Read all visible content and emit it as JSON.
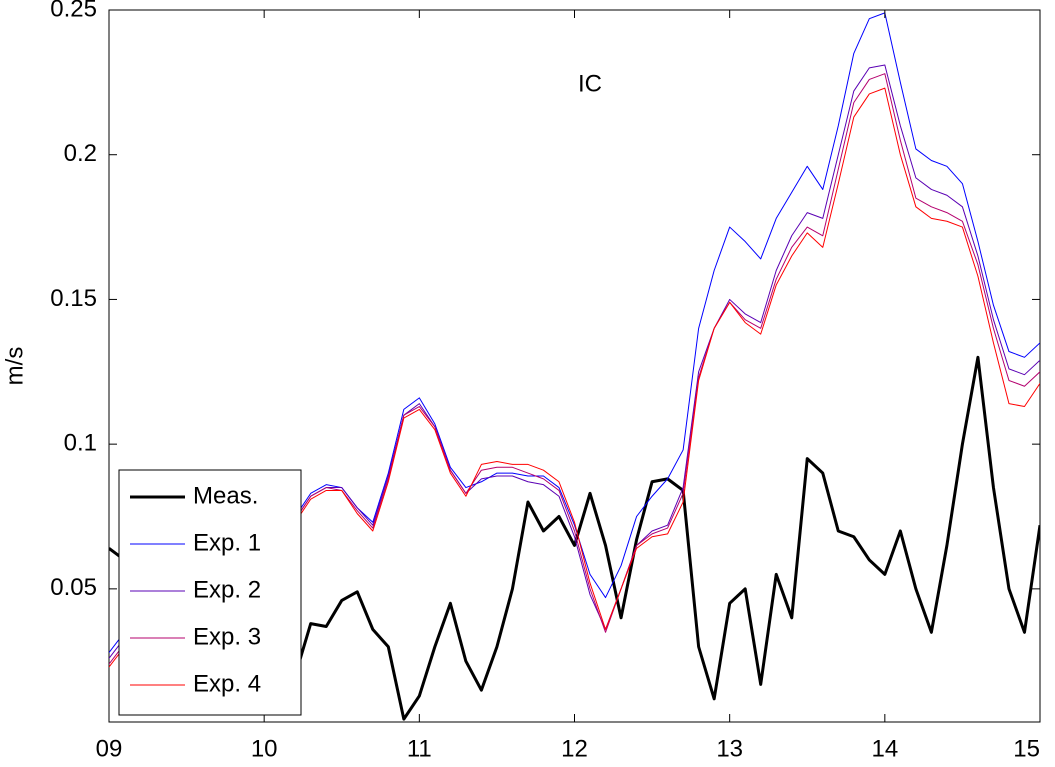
{
  "chart_data": {
    "type": "line",
    "title": "IC",
    "y_label": "m/s",
    "x": [
      9,
      9.1,
      9.2,
      9.3,
      9.4,
      9.5,
      9.6,
      9.7,
      9.8,
      9.9,
      10,
      10.1,
      10.2,
      10.3,
      10.4,
      10.5,
      10.6,
      10.7,
      10.8,
      10.9,
      11,
      11.1,
      11.2,
      11.3,
      11.4,
      11.5,
      11.6,
      11.7,
      11.8,
      11.9,
      12,
      12.1,
      12.2,
      12.3,
      12.4,
      12.5,
      12.6,
      12.7,
      12.8,
      12.9,
      13,
      13.1,
      13.2,
      13.3,
      13.4,
      13.5,
      13.6,
      13.7,
      13.8,
      13.9,
      14,
      14.1,
      14.2,
      14.3,
      14.4,
      14.5,
      14.6,
      14.7,
      14.8,
      14.9,
      15
    ],
    "series": [
      {
        "name": "Meas.",
        "color": "#000000",
        "values": [
          0.064,
          0.06,
          0.055,
          0.05,
          0.045,
          0.04,
          0.035,
          0.03,
          0.025,
          0.02,
          0.02,
          0.025,
          0.02,
          0.038,
          0.037,
          0.046,
          0.049,
          0.036,
          0.03,
          0.005,
          0.013,
          0.03,
          0.045,
          0.025,
          0.015,
          0.03,
          0.05,
          0.08,
          0.07,
          0.075,
          0.065,
          0.083,
          0.065,
          0.04,
          0.067,
          0.087,
          0.088,
          0.084,
          0.03,
          0.012,
          0.045,
          0.05,
          0.017,
          0.055,
          0.04,
          0.095,
          0.09,
          0.07,
          0.068,
          0.06,
          0.055,
          0.07,
          0.05,
          0.035,
          0.065,
          0.1,
          0.13,
          0.085,
          0.05,
          0.035,
          0.072
        ]
      },
      {
        "name": "Exp. 1",
        "color": "#0000ff",
        "values": [
          0.028,
          0.035,
          0.045,
          0.055,
          0.06,
          0.063,
          0.065,
          0.066,
          0.068,
          0.07,
          0.072,
          0.074,
          0.075,
          0.083,
          0.086,
          0.085,
          0.078,
          0.073,
          0.09,
          0.112,
          0.116,
          0.107,
          0.092,
          0.085,
          0.087,
          0.09,
          0.09,
          0.089,
          0.089,
          0.085,
          0.072,
          0.055,
          0.047,
          0.058,
          0.075,
          0.082,
          0.088,
          0.098,
          0.14,
          0.16,
          0.175,
          0.17,
          0.164,
          0.178,
          0.187,
          0.196,
          0.188,
          0.21,
          0.235,
          0.247,
          0.249,
          0.225,
          0.202,
          0.198,
          0.196,
          0.19,
          0.17,
          0.148,
          0.132,
          0.13,
          0.135
        ]
      },
      {
        "name": "Exp. 2",
        "color": "#5a00b4",
        "values": [
          0.026,
          0.033,
          0.043,
          0.053,
          0.058,
          0.062,
          0.064,
          0.065,
          0.067,
          0.069,
          0.071,
          0.073,
          0.074,
          0.082,
          0.085,
          0.085,
          0.078,
          0.072,
          0.089,
          0.11,
          0.114,
          0.106,
          0.091,
          0.083,
          0.088,
          0.089,
          0.089,
          0.087,
          0.086,
          0.082,
          0.068,
          0.048,
          0.036,
          0.05,
          0.065,
          0.07,
          0.072,
          0.085,
          0.125,
          0.14,
          0.15,
          0.145,
          0.142,
          0.16,
          0.172,
          0.18,
          0.178,
          0.2,
          0.222,
          0.23,
          0.231,
          0.21,
          0.192,
          0.188,
          0.186,
          0.182,
          0.165,
          0.143,
          0.126,
          0.124,
          0.129
        ]
      },
      {
        "name": "Exp. 3",
        "color": "#b4006e",
        "values": [
          0.024,
          0.031,
          0.041,
          0.051,
          0.057,
          0.061,
          0.063,
          0.064,
          0.066,
          0.068,
          0.07,
          0.072,
          0.074,
          0.082,
          0.085,
          0.084,
          0.077,
          0.071,
          0.088,
          0.11,
          0.113,
          0.106,
          0.091,
          0.083,
          0.091,
          0.092,
          0.092,
          0.09,
          0.088,
          0.084,
          0.07,
          0.05,
          0.035,
          0.05,
          0.065,
          0.069,
          0.071,
          0.083,
          0.123,
          0.14,
          0.149,
          0.143,
          0.14,
          0.157,
          0.168,
          0.175,
          0.172,
          0.195,
          0.218,
          0.226,
          0.228,
          0.205,
          0.185,
          0.182,
          0.18,
          0.177,
          0.162,
          0.14,
          0.122,
          0.12,
          0.125
        ]
      },
      {
        "name": "Exp. 4",
        "color": "#ff0000",
        "values": [
          0.023,
          0.03,
          0.04,
          0.05,
          0.056,
          0.06,
          0.062,
          0.063,
          0.065,
          0.067,
          0.069,
          0.071,
          0.073,
          0.081,
          0.084,
          0.084,
          0.076,
          0.07,
          0.087,
          0.109,
          0.112,
          0.105,
          0.09,
          0.082,
          0.093,
          0.094,
          0.093,
          0.093,
          0.091,
          0.087,
          0.073,
          0.052,
          0.036,
          0.05,
          0.064,
          0.068,
          0.069,
          0.08,
          0.122,
          0.14,
          0.149,
          0.142,
          0.138,
          0.155,
          0.165,
          0.173,
          0.168,
          0.19,
          0.213,
          0.221,
          0.223,
          0.2,
          0.182,
          0.178,
          0.177,
          0.175,
          0.158,
          0.135,
          0.114,
          0.113,
          0.121
        ]
      }
    ],
    "xlim": [
      9,
      15
    ],
    "xticks": [
      {
        "value": 9,
        "label": "09"
      },
      10,
      11,
      12,
      13,
      14,
      15
    ],
    "ylim": [
      0.004,
      0.25
    ],
    "yticks": [
      0.05,
      0.1,
      0.15,
      0.2,
      0.25
    ],
    "legend": "lower left"
  }
}
